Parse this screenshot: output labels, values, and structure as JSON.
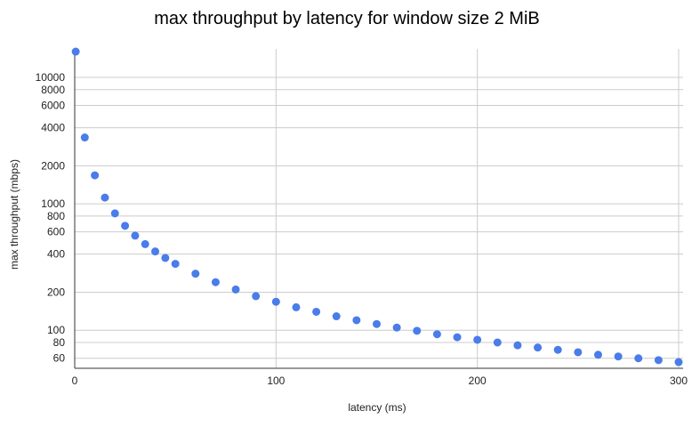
{
  "chart_data": {
    "type": "scatter",
    "title": "max throughput by latency for window size 2 MiB",
    "xlabel": "latency (ms)",
    "ylabel": "max throughput (mbps)",
    "xlim": [
      0,
      300
    ],
    "ylim": [
      50,
      16800
    ],
    "yscale": "log",
    "x_ticks": [
      0,
      100,
      200,
      300
    ],
    "y_ticks": [
      60,
      80,
      100,
      200,
      400,
      600,
      800,
      1000,
      2000,
      4000,
      6000,
      8000,
      10000
    ],
    "grid": true,
    "legend": "none",
    "point_color": "#4a7cea",
    "grid_color": "#cccccc",
    "axis_color": "#333333",
    "x": [
      0.5,
      5,
      10,
      15,
      20,
      25,
      30,
      35,
      40,
      45,
      50,
      60,
      70,
      80,
      90,
      100,
      110,
      120,
      130,
      140,
      150,
      160,
      170,
      180,
      190,
      200,
      210,
      220,
      230,
      240,
      250,
      260,
      270,
      280,
      290,
      300
    ],
    "y": [
      16000,
      3350,
      1680,
      1120,
      840,
      670,
      560,
      480,
      420,
      373,
      335,
      280,
      240,
      210,
      186,
      168,
      152,
      140,
      129,
      120,
      112,
      105,
      99,
      93,
      88,
      84,
      80,
      76,
      73,
      70,
      67,
      64,
      62,
      60,
      58,
      56
    ]
  }
}
